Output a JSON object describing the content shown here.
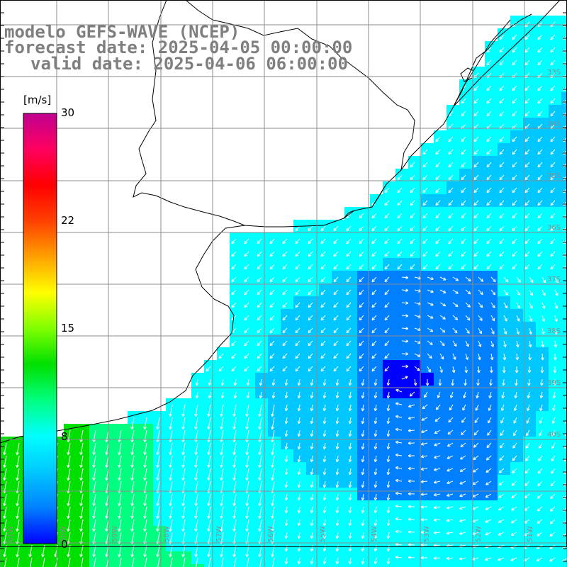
{
  "title": {
    "line1": "modelo GEFS-WAVE (NCEP)",
    "line2": "forecast date: 2025-04-05 00:00:00",
    "line3": "valid date: 2025-04-06 06:00:00"
  },
  "colorbar": {
    "unit": "[m/s]",
    "ticks": [
      "30",
      "22",
      "15",
      "8",
      "0"
    ],
    "colors": [
      "#0000ff",
      "#0080ff",
      "#00c8ff",
      "#00ffff",
      "#00ff80",
      "#00e000",
      "#80ff00",
      "#ffff00",
      "#ffa000",
      "#ff4000",
      "#ff0000",
      "#ff0060",
      "#c00090"
    ]
  },
  "map": {
    "lat_labels": [
      "33S",
      "34S",
      "35S",
      "36S",
      "37S",
      "38S",
      "39S",
      "40S"
    ],
    "lon_labels": [
      "61W",
      "60W",
      "59W",
      "58W",
      "57W",
      "56W",
      "55W",
      "54W",
      "53W",
      "52W",
      "51W"
    ],
    "grid_color": "#8c8c8c",
    "coast_color": "#000000",
    "arrow_color": "#ffffff"
  }
}
